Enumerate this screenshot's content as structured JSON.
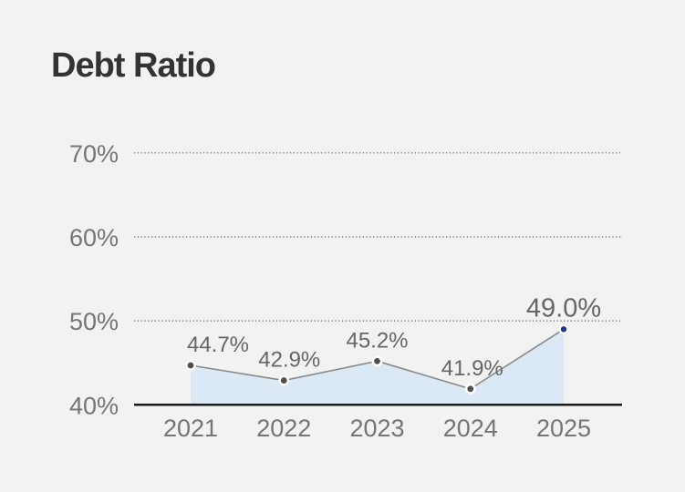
{
  "chart_data": {
    "type": "area",
    "title": "Debt Ratio",
    "categories": [
      "2021",
      "2022",
      "2023",
      "2024",
      "2025"
    ],
    "values": [
      44.7,
      42.9,
      45.2,
      41.9,
      49.0
    ],
    "point_labels": [
      "44.7%",
      "42.9%",
      "45.2%",
      "41.9%",
      "49.0%"
    ],
    "series_name": "Debt Ratio",
    "xlabel": "",
    "ylabel": "",
    "ylim": [
      40,
      73
    ],
    "yticks": [
      40,
      50,
      60,
      70
    ],
    "ytick_labels": [
      "40%",
      "50%",
      "60%",
      "70%"
    ],
    "grid": "horizontal-dotted",
    "legend": "none",
    "highlight": {
      "category": "2025",
      "value": 49.0,
      "label": "49.0%",
      "color": "#1a3a8a"
    },
    "colors": {
      "background": "#f2f2f2",
      "title_text": "#333333",
      "tick_text": "#757575",
      "data_label_text": "#666666",
      "line": "#8a8a8a",
      "marker_fill": "#4f4f4f",
      "marker_stroke": "#ffffff",
      "area_fill": "#dbe8f5",
      "axis_line": "#1a1a1a",
      "gridline": "#5a5a5a",
      "highlight_text": "#1a3a8a",
      "highlight_marker": "#1a3a8a"
    }
  }
}
